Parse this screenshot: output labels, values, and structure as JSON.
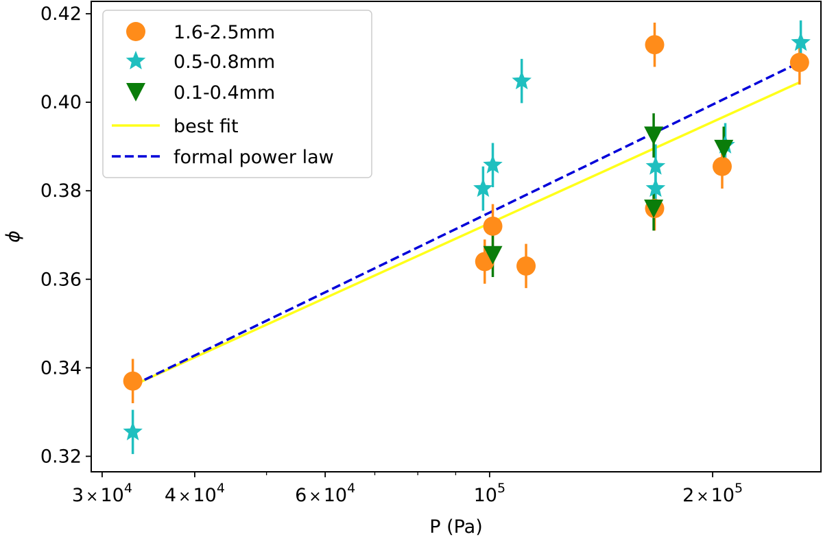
{
  "chart_data": {
    "type": "scatter",
    "title": "",
    "xlabel": "P (Pa)",
    "ylabel": "ϕ",
    "xscale": "log",
    "xlim": [
      29000,
      280000
    ],
    "ylim": [
      0.3165,
      0.4228
    ],
    "grid": false,
    "legend_position": "top-left",
    "x_ticks": [
      {
        "value": 30000,
        "mantissa": "3",
        "exponent": "4"
      },
      {
        "value": 40000,
        "mantissa": "4",
        "exponent": "4"
      },
      {
        "value": 60000,
        "mantissa": "6",
        "exponent": "4"
      },
      {
        "value": 100000,
        "mantissa": "",
        "exponent": "5"
      },
      {
        "value": 200000,
        "mantissa": "2",
        "exponent": "5"
      }
    ],
    "x_minor_ticks": [
      50000,
      70000,
      80000,
      90000
    ],
    "y_ticks": [
      {
        "value": 0.32,
        "label": "0.32"
      },
      {
        "value": 0.34,
        "label": "0.34"
      },
      {
        "value": 0.36,
        "label": "0.36"
      },
      {
        "value": 0.38,
        "label": "0.38"
      },
      {
        "value": 0.4,
        "label": "0.40"
      },
      {
        "value": 0.42,
        "label": "0.42"
      }
    ],
    "series": [
      {
        "name": "1.6-2.5mm",
        "marker": "circle",
        "color": "#ff8c1a",
        "yerr": 0.005,
        "points": [
          {
            "x": 33000,
            "y": 0.337
          },
          {
            "x": 98500,
            "y": 0.364
          },
          {
            "x": 101000,
            "y": 0.372
          },
          {
            "x": 112000,
            "y": 0.363
          },
          {
            "x": 167000,
            "y": 0.413
          },
          {
            "x": 167000,
            "y": 0.376
          },
          {
            "x": 206000,
            "y": 0.3855
          },
          {
            "x": 262000,
            "y": 0.409
          }
        ]
      },
      {
        "name": "0.5-0.8mm",
        "marker": "star",
        "color": "#1fbfbf",
        "yerr": 0.005,
        "points": [
          {
            "x": 33000,
            "y": 0.3255
          },
          {
            "x": 98000,
            "y": 0.3805
          },
          {
            "x": 101000,
            "y": 0.3858
          },
          {
            "x": 110500,
            "y": 0.4048
          },
          {
            "x": 167500,
            "y": 0.3855
          },
          {
            "x": 167500,
            "y": 0.3805
          },
          {
            "x": 208000,
            "y": 0.3903
          },
          {
            "x": 263000,
            "y": 0.4135
          }
        ]
      },
      {
        "name": "0.1-0.4mm",
        "marker": "triangle-down",
        "color": "#0a7d0a",
        "yerr": 0.005,
        "points": [
          {
            "x": 101000,
            "y": 0.3655
          },
          {
            "x": 166500,
            "y": 0.3925
          },
          {
            "x": 166500,
            "y": 0.376
          },
          {
            "x": 207000,
            "y": 0.3895
          }
        ]
      }
    ],
    "lines": [
      {
        "name": "best fit",
        "style": "solid",
        "color": "#ffff1a",
        "points": [
          {
            "x": 33000,
            "y": 0.336
          },
          {
            "x": 262000,
            "y": 0.4045
          }
        ]
      },
      {
        "name": "formal power law",
        "style": "dashed",
        "color": "#0000d9",
        "points": [
          {
            "x": 33000,
            "y": 0.336
          },
          {
            "x": 262000,
            "y": 0.409
          }
        ]
      }
    ]
  }
}
